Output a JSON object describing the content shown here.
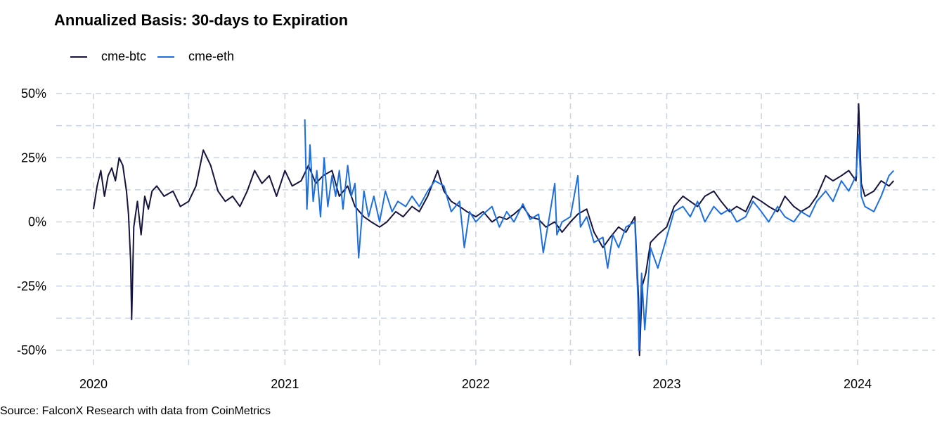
{
  "chart_data": {
    "type": "line",
    "title": "Annualized Basis: 30-days to Expiration",
    "xlabel": "",
    "ylabel": "",
    "x_ticks": [
      "2020",
      "2021",
      "2022",
      "2023",
      "2024"
    ],
    "y_ticks": [
      "50%",
      "25%",
      "0%",
      "-25%",
      "-50%"
    ],
    "ylim": [
      -0.5,
      0.5
    ],
    "xlim": [
      "2020-01-01",
      "2024-03-15"
    ],
    "grid": true,
    "legend_position": "top-left",
    "series": [
      {
        "name": "cme-btc",
        "color": "#14143f",
        "points": [
          [
            "2020-01-01",
            0.05
          ],
          [
            "2020-01-08",
            0.14
          ],
          [
            "2020-01-15",
            0.2
          ],
          [
            "2020-01-22",
            0.1
          ],
          [
            "2020-01-29",
            0.18
          ],
          [
            "2020-02-05",
            0.21
          ],
          [
            "2020-02-12",
            0.16
          ],
          [
            "2020-02-19",
            0.25
          ],
          [
            "2020-02-26",
            0.22
          ],
          [
            "2020-03-04",
            0.12
          ],
          [
            "2020-03-08",
            0.03
          ],
          [
            "2020-03-12",
            -0.15
          ],
          [
            "2020-03-14",
            -0.38
          ],
          [
            "2020-03-18",
            -0.02
          ],
          [
            "2020-03-25",
            0.08
          ],
          [
            "2020-04-01",
            -0.05
          ],
          [
            "2020-04-08",
            0.1
          ],
          [
            "2020-04-15",
            0.05
          ],
          [
            "2020-04-22",
            0.12
          ],
          [
            "2020-05-01",
            0.14
          ],
          [
            "2020-05-15",
            0.1
          ],
          [
            "2020-06-01",
            0.12
          ],
          [
            "2020-06-15",
            0.06
          ],
          [
            "2020-07-01",
            0.08
          ],
          [
            "2020-07-15",
            0.14
          ],
          [
            "2020-07-29",
            0.28
          ],
          [
            "2020-08-12",
            0.22
          ],
          [
            "2020-08-26",
            0.12
          ],
          [
            "2020-09-09",
            0.08
          ],
          [
            "2020-09-23",
            0.1
          ],
          [
            "2020-10-07",
            0.06
          ],
          [
            "2020-10-21",
            0.12
          ],
          [
            "2020-11-04",
            0.2
          ],
          [
            "2020-11-18",
            0.15
          ],
          [
            "2020-12-02",
            0.18
          ],
          [
            "2020-12-16",
            0.1
          ],
          [
            "2021-01-01",
            0.2
          ],
          [
            "2021-01-15",
            0.14
          ],
          [
            "2021-02-01",
            0.16
          ],
          [
            "2021-02-15",
            0.22
          ],
          [
            "2021-03-01",
            0.15
          ],
          [
            "2021-03-15",
            0.18
          ],
          [
            "2021-04-01",
            0.2
          ],
          [
            "2021-04-15",
            0.1
          ],
          [
            "2021-05-01",
            0.14
          ],
          [
            "2021-05-15",
            0.06
          ],
          [
            "2021-06-01",
            0.02
          ],
          [
            "2021-06-15",
            0.0
          ],
          [
            "2021-07-01",
            -0.02
          ],
          [
            "2021-07-15",
            0.0
          ],
          [
            "2021-08-01",
            0.04
          ],
          [
            "2021-08-15",
            0.02
          ],
          [
            "2021-09-01",
            0.06
          ],
          [
            "2021-09-15",
            0.04
          ],
          [
            "2021-10-01",
            0.1
          ],
          [
            "2021-10-20",
            0.2
          ],
          [
            "2021-11-01",
            0.12
          ],
          [
            "2021-11-15",
            0.08
          ],
          [
            "2021-12-01",
            0.06
          ],
          [
            "2021-12-15",
            0.04
          ],
          [
            "2022-01-01",
            0.02
          ],
          [
            "2022-01-15",
            0.04
          ],
          [
            "2022-02-01",
            0.0
          ],
          [
            "2022-02-15",
            0.02
          ],
          [
            "2022-03-01",
            0.01
          ],
          [
            "2022-03-15",
            0.03
          ],
          [
            "2022-04-01",
            0.06
          ],
          [
            "2022-04-15",
            0.02
          ],
          [
            "2022-05-01",
            0.01
          ],
          [
            "2022-05-15",
            -0.02
          ],
          [
            "2022-06-01",
            0.0
          ],
          [
            "2022-06-15",
            -0.04
          ],
          [
            "2022-07-01",
            0.0
          ],
          [
            "2022-07-15",
            0.03
          ],
          [
            "2022-08-01",
            0.05
          ],
          [
            "2022-08-15",
            -0.04
          ],
          [
            "2022-09-01",
            -0.1
          ],
          [
            "2022-09-15",
            -0.06
          ],
          [
            "2022-10-01",
            -0.02
          ],
          [
            "2022-10-15",
            -0.04
          ],
          [
            "2022-11-01",
            0.02
          ],
          [
            "2022-11-08",
            -0.3
          ],
          [
            "2022-11-10",
            -0.52
          ],
          [
            "2022-11-15",
            -0.25
          ],
          [
            "2022-11-22",
            -0.2
          ],
          [
            "2022-12-01",
            -0.08
          ],
          [
            "2022-12-15",
            -0.05
          ],
          [
            "2023-01-01",
            -0.02
          ],
          [
            "2023-01-15",
            0.06
          ],
          [
            "2023-02-01",
            0.1
          ],
          [
            "2023-02-15",
            0.08
          ],
          [
            "2023-03-01",
            0.06
          ],
          [
            "2023-03-15",
            0.1
          ],
          [
            "2023-04-01",
            0.12
          ],
          [
            "2023-04-15",
            0.08
          ],
          [
            "2023-05-01",
            0.04
          ],
          [
            "2023-05-15",
            0.06
          ],
          [
            "2023-06-01",
            0.04
          ],
          [
            "2023-06-15",
            0.1
          ],
          [
            "2023-07-01",
            0.08
          ],
          [
            "2023-07-15",
            0.06
          ],
          [
            "2023-08-01",
            0.04
          ],
          [
            "2023-08-15",
            0.1
          ],
          [
            "2023-09-01",
            0.06
          ],
          [
            "2023-09-15",
            0.04
          ],
          [
            "2023-10-01",
            0.06
          ],
          [
            "2023-10-15",
            0.1
          ],
          [
            "2023-11-01",
            0.18
          ],
          [
            "2023-11-15",
            0.16
          ],
          [
            "2023-12-01",
            0.18
          ],
          [
            "2023-12-15",
            0.2
          ],
          [
            "2023-12-29",
            0.16
          ],
          [
            "2024-01-03",
            0.46
          ],
          [
            "2024-01-08",
            0.15
          ],
          [
            "2024-01-15",
            0.1
          ],
          [
            "2024-02-01",
            0.12
          ],
          [
            "2024-02-15",
            0.16
          ],
          [
            "2024-03-01",
            0.14
          ],
          [
            "2024-03-10",
            0.16
          ]
        ]
      },
      {
        "name": "cme-eth",
        "color": "#1d6fe0",
        "points": [
          [
            "2021-02-08",
            0.4
          ],
          [
            "2021-02-12",
            0.05
          ],
          [
            "2021-02-18",
            0.3
          ],
          [
            "2021-02-24",
            0.08
          ],
          [
            "2021-03-03",
            0.2
          ],
          [
            "2021-03-10",
            0.02
          ],
          [
            "2021-03-17",
            0.25
          ],
          [
            "2021-03-24",
            0.06
          ],
          [
            "2021-04-01",
            0.18
          ],
          [
            "2021-04-08",
            0.1
          ],
          [
            "2021-04-15",
            0.2
          ],
          [
            "2021-04-22",
            0.05
          ],
          [
            "2021-05-01",
            0.22
          ],
          [
            "2021-05-08",
            0.1
          ],
          [
            "2021-05-15",
            0.15
          ],
          [
            "2021-05-22",
            -0.14
          ],
          [
            "2021-06-01",
            0.12
          ],
          [
            "2021-06-10",
            0.02
          ],
          [
            "2021-06-20",
            0.1
          ],
          [
            "2021-07-01",
            0.0
          ],
          [
            "2021-07-12",
            0.12
          ],
          [
            "2021-07-25",
            0.04
          ],
          [
            "2021-08-05",
            0.08
          ],
          [
            "2021-08-20",
            0.06
          ],
          [
            "2021-09-01",
            0.1
          ],
          [
            "2021-09-15",
            0.06
          ],
          [
            "2021-10-01",
            0.12
          ],
          [
            "2021-10-15",
            0.16
          ],
          [
            "2021-11-01",
            0.14
          ],
          [
            "2021-11-15",
            0.04
          ],
          [
            "2021-12-01",
            0.08
          ],
          [
            "2021-12-10",
            -0.1
          ],
          [
            "2021-12-20",
            0.04
          ],
          [
            "2022-01-01",
            0.0
          ],
          [
            "2022-01-15",
            0.03
          ],
          [
            "2022-02-01",
            0.06
          ],
          [
            "2022-02-15",
            -0.02
          ],
          [
            "2022-03-01",
            0.04
          ],
          [
            "2022-03-15",
            0.0
          ],
          [
            "2022-04-01",
            0.07
          ],
          [
            "2022-04-15",
            0.01
          ],
          [
            "2022-05-01",
            0.03
          ],
          [
            "2022-05-10",
            -0.12
          ],
          [
            "2022-05-20",
            0.0
          ],
          [
            "2022-06-01",
            0.15
          ],
          [
            "2022-06-05",
            -0.05
          ],
          [
            "2022-06-15",
            0.0
          ],
          [
            "2022-07-01",
            0.02
          ],
          [
            "2022-07-15",
            0.18
          ],
          [
            "2022-07-20",
            -0.02
          ],
          [
            "2022-08-01",
            0.02
          ],
          [
            "2022-08-15",
            -0.08
          ],
          [
            "2022-09-01",
            -0.06
          ],
          [
            "2022-09-10",
            -0.18
          ],
          [
            "2022-09-20",
            -0.05
          ],
          [
            "2022-10-01",
            -0.1
          ],
          [
            "2022-10-15",
            -0.02
          ],
          [
            "2022-11-01",
            0.0
          ],
          [
            "2022-11-07",
            -0.3
          ],
          [
            "2022-11-09",
            -0.5
          ],
          [
            "2022-11-14",
            -0.2
          ],
          [
            "2022-11-20",
            -0.42
          ],
          [
            "2022-12-01",
            -0.1
          ],
          [
            "2022-12-15",
            -0.18
          ],
          [
            "2023-01-01",
            -0.06
          ],
          [
            "2023-01-15",
            0.04
          ],
          [
            "2023-02-01",
            0.06
          ],
          [
            "2023-02-15",
            0.02
          ],
          [
            "2023-03-01",
            0.08
          ],
          [
            "2023-03-15",
            0.0
          ],
          [
            "2023-04-01",
            0.06
          ],
          [
            "2023-04-15",
            0.03
          ],
          [
            "2023-05-01",
            0.05
          ],
          [
            "2023-05-15",
            0.0
          ],
          [
            "2023-06-01",
            0.02
          ],
          [
            "2023-06-15",
            0.08
          ],
          [
            "2023-07-01",
            0.04
          ],
          [
            "2023-07-15",
            0.0
          ],
          [
            "2023-08-01",
            0.06
          ],
          [
            "2023-08-15",
            0.02
          ],
          [
            "2023-09-01",
            0.0
          ],
          [
            "2023-09-15",
            0.04
          ],
          [
            "2023-10-01",
            0.02
          ],
          [
            "2023-10-15",
            0.08
          ],
          [
            "2023-11-01",
            0.12
          ],
          [
            "2023-11-15",
            0.08
          ],
          [
            "2023-12-01",
            0.16
          ],
          [
            "2023-12-15",
            0.12
          ],
          [
            "2023-12-29",
            0.18
          ],
          [
            "2024-01-03",
            0.34
          ],
          [
            "2024-01-08",
            0.1
          ],
          [
            "2024-01-15",
            0.06
          ],
          [
            "2024-02-01",
            0.04
          ],
          [
            "2024-02-15",
            0.1
          ],
          [
            "2024-03-01",
            0.18
          ],
          [
            "2024-03-10",
            0.2
          ]
        ]
      }
    ]
  },
  "source_text": "Source: FalconX Research with data from CoinMetrics"
}
